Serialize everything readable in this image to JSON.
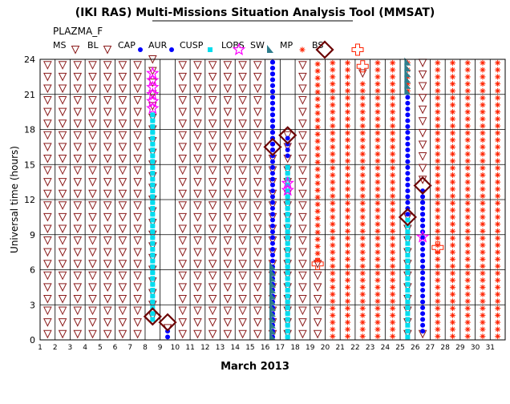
{
  "title": "(IKI RAS) Multi-Missions Situation Analysis Tool (MMSAT)",
  "instrument": "PLAZMA_F",
  "chart_data": {
    "type": "scatter",
    "title": "(IKI RAS) Multi-Missions Situation Analysis Tool (MMSAT)",
    "subtitle": "PLAZMA_F",
    "xlabel": "March 2013",
    "ylabel": "Universal time (hours)",
    "xlim": [
      1,
      32
    ],
    "ylim": [
      0,
      24
    ],
    "x_ticks": [
      1,
      2,
      3,
      4,
      5,
      6,
      7,
      8,
      9,
      10,
      11,
      12,
      13,
      14,
      15,
      16,
      17,
      18,
      19,
      20,
      21,
      22,
      23,
      24,
      25,
      26,
      27,
      28,
      29,
      30,
      31
    ],
    "y_ticks": [
      0,
      3,
      6,
      9,
      12,
      15,
      18,
      21,
      24
    ],
    "grid": true,
    "legend_position": "top",
    "legend": [
      {
        "label": "MS",
        "marker": "triangle-down",
        "color": "#8B1A1A"
      },
      {
        "label": "BL",
        "marker": "triangle-down",
        "color": "#8B1A1A"
      },
      {
        "label": "CAP",
        "marker": "circle",
        "color": "#FFFF00"
      },
      {
        "label": "AUR",
        "marker": "circle",
        "color": "#0000FF"
      },
      {
        "label": "CUSP",
        "marker": "square",
        "color": "#00DDEE"
      },
      {
        "label": "LOBS",
        "marker": "star",
        "color": "#FF00FF"
      },
      {
        "label": "SW",
        "marker": "wedge",
        "color": "#2E7D8C"
      },
      {
        "label": "MP",
        "marker": "asterisk",
        "color": "#FF2200"
      },
      {
        "label": "BS",
        "marker": "diamond",
        "color": "#6B0000"
      },
      {
        "label": "",
        "marker": "cross",
        "color": "#FF2200"
      }
    ],
    "series": [
      {
        "name": "MS",
        "segments": [
          [
            1.5,
            0,
            24
          ],
          [
            2.5,
            0,
            24
          ],
          [
            3.5,
            0,
            24
          ],
          [
            4.5,
            0,
            24
          ],
          [
            5.5,
            0,
            24
          ],
          [
            6.5,
            0,
            24
          ],
          [
            7.5,
            0,
            24
          ],
          [
            8.5,
            1.5,
            24
          ],
          [
            9.5,
            0.5,
            1.5
          ],
          [
            10.5,
            0,
            24
          ],
          [
            11.5,
            0,
            24
          ],
          [
            12.5,
            0,
            24
          ],
          [
            13.5,
            0,
            24
          ],
          [
            14.5,
            0,
            24
          ],
          [
            15.5,
            0,
            24
          ],
          [
            16.5,
            0,
            15.5
          ],
          [
            17.5,
            0,
            17.5
          ],
          [
            18.5,
            0,
            24
          ],
          [
            19.5,
            0,
            6.5
          ],
          [
            22.5,
            22.3,
            23.4
          ],
          [
            25.5,
            0,
            10.5
          ],
          [
            26.5,
            0,
            0.8
          ],
          [
            26.5,
            13.2,
            24
          ]
        ]
      },
      {
        "name": "CAP",
        "segments": [
          [
            9.5,
            0,
            1.0
          ],
          [
            16.5,
            15.5,
            24
          ],
          [
            17.5,
            15.5,
            17.5
          ],
          [
            26.5,
            9.5,
            13.0
          ]
        ]
      },
      {
        "name": "AUR",
        "segments": [
          [
            8.5,
            3.0,
            19.5
          ],
          [
            16.5,
            0,
            24
          ],
          [
            17.5,
            0,
            15.0
          ],
          [
            25.5,
            10.5,
            21.0
          ],
          [
            26.5,
            0.5,
            12.0
          ]
        ]
      },
      {
        "name": "CUSP",
        "segments": [
          [
            8.5,
            1.5,
            19.5
          ],
          [
            17.5,
            0,
            15.0
          ],
          [
            25.5,
            0,
            10.5
          ]
        ]
      },
      {
        "name": "LOBS",
        "segments": [
          [
            8.5,
            19.5,
            23.0
          ],
          [
            17.5,
            12.5,
            13.5
          ],
          [
            26.5,
            8.5,
            9.0
          ]
        ]
      },
      {
        "name": "SW",
        "segments": [
          [
            16.5,
            0,
            6.5
          ],
          [
            25.5,
            21.0,
            24
          ]
        ]
      },
      {
        "name": "MP",
        "segments": [
          [
            19.5,
            6.5,
            24
          ],
          [
            20.5,
            0,
            24
          ],
          [
            21.5,
            0,
            24
          ],
          [
            22.5,
            0,
            22.3
          ],
          [
            23.5,
            0,
            24
          ],
          [
            24.5,
            0,
            24
          ],
          [
            25.5,
            21.0,
            24
          ],
          [
            27.5,
            0,
            24
          ],
          [
            28.5,
            0,
            24
          ],
          [
            29.5,
            0,
            24
          ],
          [
            30.5,
            0,
            24
          ],
          [
            31.5,
            0,
            24
          ]
        ]
      },
      {
        "name": "BS",
        "points": [
          [
            8.5,
            2.0
          ],
          [
            9.5,
            1.5
          ],
          [
            16.5,
            16.5
          ],
          [
            17.5,
            17.5
          ],
          [
            25.5,
            10.5
          ],
          [
            26.5,
            13.2
          ]
        ]
      },
      {
        "name": "",
        "points": [
          [
            19.5,
            6.5
          ],
          [
            22.5,
            23.4
          ],
          [
            27.5,
            7.9
          ]
        ]
      }
    ]
  }
}
